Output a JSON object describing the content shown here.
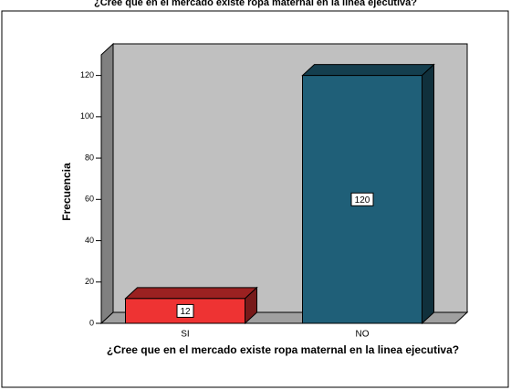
{
  "chart_data": {
    "type": "bar3d",
    "title": "¿Cree que en el mercado existe ropa maternal en la linea ejecutiva?",
    "x_label": "¿Cree que en el mercado existe ropa maternal en la linea ejecutiva?",
    "y_label": "Frecuencia",
    "categories": [
      "SI",
      "NO"
    ],
    "values": [
      12,
      120
    ],
    "colors": [
      "#ee3333",
      "#1f5f78"
    ],
    "ylim": [
      0,
      130
    ],
    "yticks": [
      0,
      20,
      40,
      60,
      80,
      100,
      120
    ]
  }
}
